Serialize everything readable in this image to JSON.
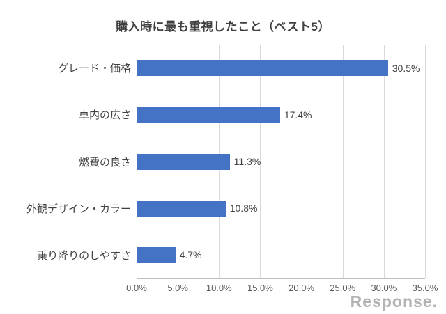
{
  "chart_data": {
    "type": "bar",
    "orientation": "horizontal",
    "title": "購入時に最も重視したこと（ベスト5）",
    "categories": [
      "グレード・価格",
      "車内の広さ",
      "燃費の良さ",
      "外観デザイン・カラー",
      "乗り降りのしやすさ"
    ],
    "values": [
      30.5,
      17.4,
      11.3,
      10.8,
      4.7
    ],
    "value_labels": [
      "30.5%",
      "17.4%",
      "11.3%",
      "10.8%",
      "4.7%"
    ],
    "xlim": [
      0,
      35
    ],
    "x_tick_values": [
      0,
      5,
      10,
      15,
      20,
      25,
      30,
      35
    ],
    "x_ticks": [
      "0.0%",
      "5.0%",
      "10.0%",
      "15.0%",
      "20.0%",
      "25.0%",
      "30.0%",
      "35.0%"
    ],
    "xlabel": "",
    "ylabel": "",
    "grid": true,
    "legend": false,
    "bar_color": "#4472c4",
    "gridline_color": "#d9d9d9"
  },
  "watermark": {
    "text": "Response."
  }
}
